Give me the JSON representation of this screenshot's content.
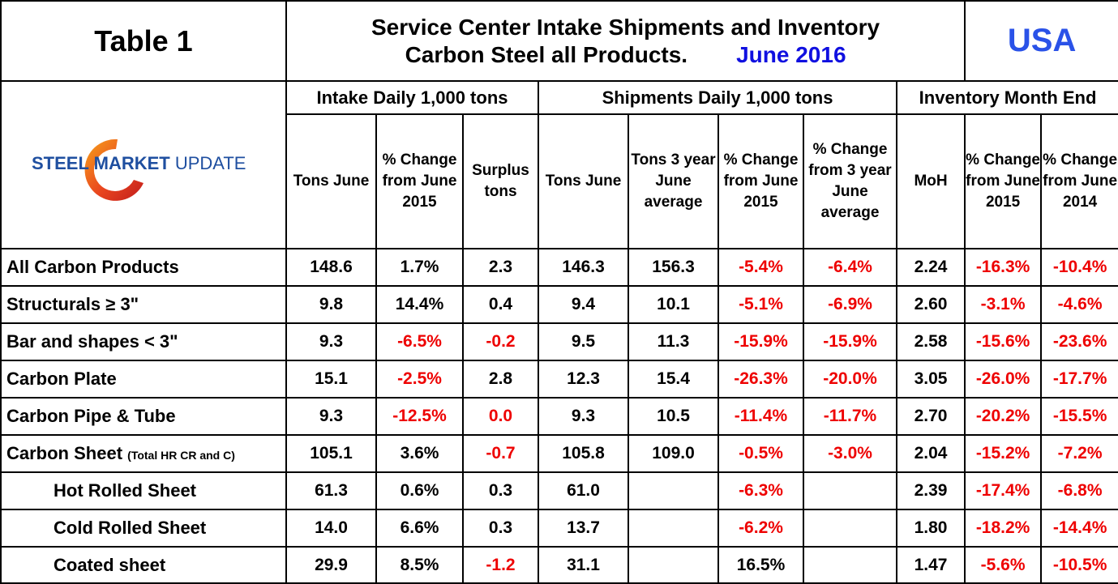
{
  "table_title": "Table 1",
  "header": {
    "line1": "Service Center Intake Shipments and Inventory",
    "line2": "Carbon Steel all Products.",
    "date": "June 2016",
    "region": "USA"
  },
  "logo": {
    "text_bold": "STEEL MARKET",
    "text_light": " UPDATE"
  },
  "groups": {
    "intake": "Intake Daily 1,000 tons",
    "shipments": "Shipments Daily 1,000 tons",
    "inventory": "Inventory Month End"
  },
  "columns": {
    "intake_tons": "Tons June",
    "intake_change": "% Change from June 2015",
    "surplus": "Surplus tons",
    "ship_tons": "Tons June",
    "ship_3yr": "Tons 3 year June average",
    "ship_change": "% Change from June 2015",
    "ship_change_3yr": "% Change from 3 year June average",
    "moh": "MoH",
    "inv_change_2015": "% Change from June 2015",
    "inv_change_2014": "% Change from June 2014"
  },
  "colors": {
    "negative": "#ee0000",
    "region": "#2a52e8",
    "date": "#1010e0",
    "logo_blue": "#1f4fa0",
    "logo_red": "#d42a1e"
  },
  "rows": [
    {
      "label": "All Carbon Products",
      "small": "",
      "indent": false,
      "cells": [
        "148.6",
        "1.7%",
        "2.3",
        "146.3",
        "156.3",
        "-5.4%",
        "-6.4%",
        "2.24",
        "-16.3%",
        "-10.4%"
      ]
    },
    {
      "label": "Structurals ≥ 3\"",
      "small": "",
      "indent": false,
      "cells": [
        "9.8",
        "14.4%",
        "0.4",
        "9.4",
        "10.1",
        "-5.1%",
        "-6.9%",
        "2.60",
        "-3.1%",
        "-4.6%"
      ]
    },
    {
      "label": "Bar and shapes < 3\"",
      "small": "",
      "indent": false,
      "cells": [
        "9.3",
        "-6.5%",
        "-0.2",
        "9.5",
        "11.3",
        "-15.9%",
        "-15.9%",
        "2.58",
        "-15.6%",
        "-23.6%"
      ]
    },
    {
      "label": "Carbon Plate",
      "small": "",
      "indent": false,
      "cells": [
        "15.1",
        "-2.5%",
        "2.8",
        "12.3",
        "15.4",
        "-26.3%",
        "-20.0%",
        "3.05",
        "-26.0%",
        "-17.7%"
      ]
    },
    {
      "label": "Carbon Pipe & Tube",
      "small": "",
      "indent": false,
      "cells": [
        "9.3",
        "-12.5%",
        "0.0",
        "9.3",
        "10.5",
        "-11.4%",
        "-11.7%",
        "2.70",
        "-20.2%",
        "-15.5%"
      ]
    },
    {
      "label": "Carbon Sheet",
      "small": "(Total HR CR and C)",
      "indent": false,
      "cells": [
        "105.1",
        "3.6%",
        "-0.7",
        "105.8",
        "109.0",
        "-0.5%",
        "-3.0%",
        "2.04",
        "-15.2%",
        "-7.2%"
      ]
    },
    {
      "label": "Hot Rolled Sheet",
      "small": "",
      "indent": true,
      "cells": [
        "61.3",
        "0.6%",
        "0.3",
        "61.0",
        "",
        "-6.3%",
        "",
        "2.39",
        "-17.4%",
        "-6.8%"
      ]
    },
    {
      "label": "Cold Rolled Sheet",
      "small": "",
      "indent": true,
      "cells": [
        "14.0",
        "6.6%",
        "0.3",
        "13.7",
        "",
        "-6.2%",
        "",
        "1.80",
        "-18.2%",
        "-14.4%"
      ]
    },
    {
      "label": "Coated sheet",
      "small": "",
      "indent": true,
      "cells": [
        "29.9",
        "8.5%",
        "-1.2",
        "31.1",
        "",
        "16.5%",
        "",
        "1.47",
        "-5.6%",
        "-10.5%"
      ]
    }
  ],
  "red_cells": [
    [
      5,
      6,
      8,
      9
    ],
    [
      5,
      6,
      8,
      9
    ],
    [
      1,
      2,
      5,
      6,
      8,
      9
    ],
    [
      1,
      5,
      6,
      8,
      9
    ],
    [
      1,
      2,
      5,
      6,
      8,
      9
    ],
    [
      2,
      5,
      6,
      8,
      9
    ],
    [
      5,
      8,
      9
    ],
    [
      5,
      8,
      9
    ],
    [
      2,
      8,
      9
    ]
  ]
}
